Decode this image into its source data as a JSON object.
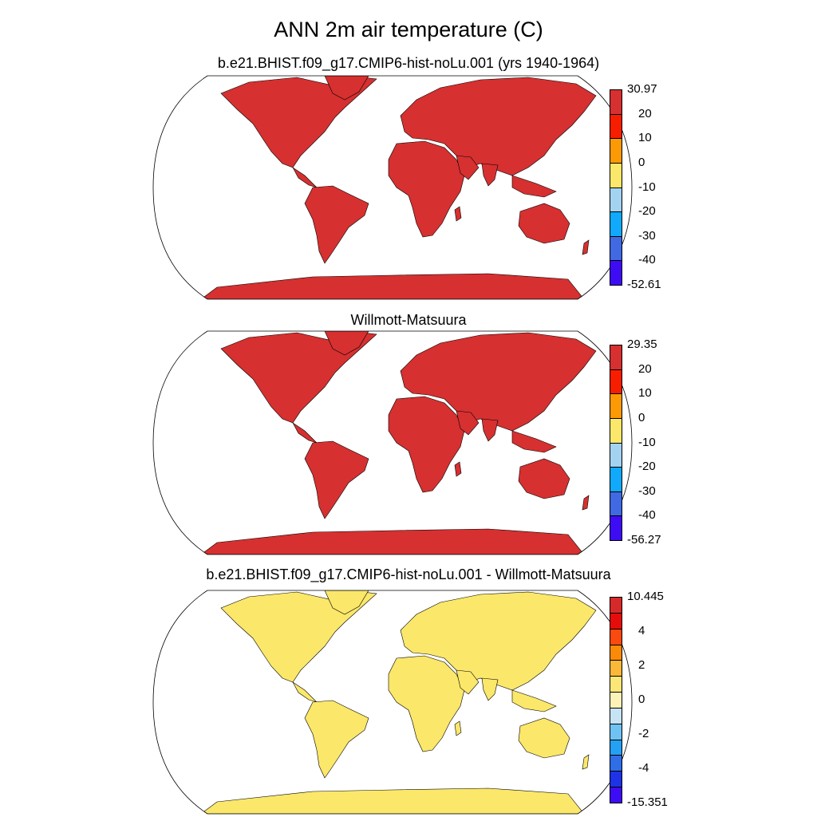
{
  "title": "ANN 2m air temperature (C)",
  "panels": [
    {
      "id": "model",
      "subtitle": "b.e21.BHIST.f09_g17.CMIP6-hist-noLu.001 (yrs 1940-1964)",
      "colorbar": {
        "labels": [
          "30.97",
          "20",
          "10",
          "0",
          "-10",
          "-20",
          "-30",
          "-40",
          "-52.61"
        ],
        "colors": [
          "#d63030",
          "#f71e00",
          "#fb9a05",
          "#fbe76a",
          "#a3d3f0",
          "#10a9fb",
          "#4169e1",
          "#3d0cf5"
        ]
      }
    },
    {
      "id": "obs",
      "subtitle": "Willmott-Matsuura",
      "colorbar": {
        "labels": [
          "29.35",
          "20",
          "10",
          "0",
          "-10",
          "-20",
          "-30",
          "-40",
          "-56.27"
        ],
        "colors": [
          "#d63030",
          "#f71e00",
          "#fb9a05",
          "#fbe76a",
          "#a3d3f0",
          "#10a9fb",
          "#4169e1",
          "#3d0cf5"
        ]
      }
    },
    {
      "id": "diff",
      "subtitle": "b.e21.BHIST.f09_g17.CMIP6-hist-noLu.001 - Willmott-Matsuura",
      "colorbar": {
        "labels": [
          "10.445",
          "",
          "4",
          "",
          "2",
          "",
          "0",
          "",
          "-2",
          "",
          "-4",
          "",
          "-15.351"
        ],
        "colors": [
          "#d62a2a",
          "#e60c0c",
          "#fa4a10",
          "#fb8a08",
          "#fbb838",
          "#fde678",
          "#fdf3b8",
          "#c6e4f4",
          "#6fc3f3",
          "#24a0f5",
          "#2f6ee6",
          "#1e33e6",
          "#3d0cf5"
        ]
      }
    }
  ]
}
